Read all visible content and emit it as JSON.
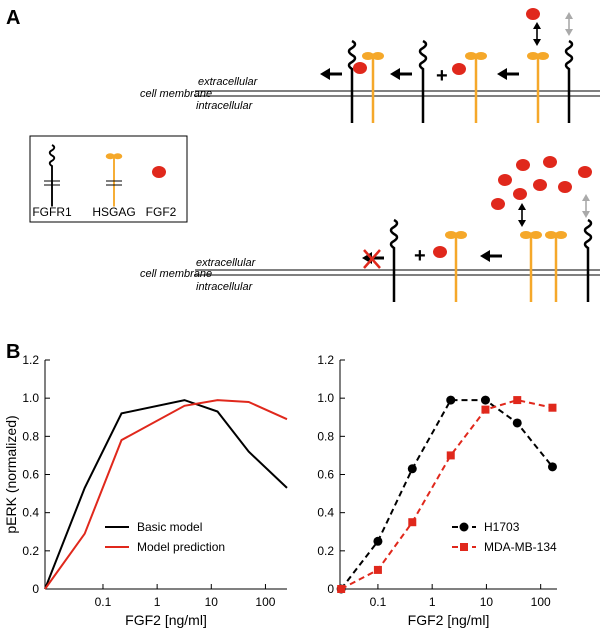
{
  "panel_a": {
    "label": "A",
    "top_row": {
      "extracellular": "extracellular",
      "cell_membrane": "cell membrane",
      "intracellular": "intracellular"
    },
    "bottom_row": {
      "extracellular": "extracellular",
      "cell_membrane": "cell membrane",
      "intracellular": "intracellular"
    },
    "legend": {
      "items": [
        "FGFR1",
        "HSGAG",
        "FGF2"
      ]
    }
  },
  "panel_b": {
    "label": "B"
  },
  "chart_data": [
    {
      "type": "line",
      "ylabel": "pERK (normalized)",
      "xlabel": "FGF2 [ng/ml]",
      "xscale": "log",
      "x": [
        0.0085,
        0.046,
        0.22,
        3.2,
        13,
        49,
        250
      ],
      "series": [
        {
          "name": "Basic model",
          "color": "#000000",
          "linestyle": "solid",
          "values": [
            0,
            0.53,
            0.92,
            0.99,
            0.93,
            0.72,
            0.53
          ]
        },
        {
          "name": "Model prediction",
          "color": "#e0281c",
          "linestyle": "solid",
          "values": [
            0,
            0.29,
            0.78,
            0.96,
            0.99,
            0.98,
            0.89
          ]
        }
      ],
      "xlim": [
        0.0085,
        250
      ],
      "ylim": [
        0,
        1.2
      ],
      "xticks": [
        0.1,
        1,
        10,
        100
      ],
      "yticks": [
        0,
        0.2,
        0.4,
        0.6,
        0.8,
        {
          "value": 1,
          "label": "1.0"
        },
        1.2
      ],
      "legend": "lower right"
    },
    {
      "type": "line",
      "xlabel": "FGF2 [ng/ml]",
      "xscale": "log",
      "x": [
        0.021,
        0.1,
        0.43,
        2.2,
        9.6,
        37,
        165
      ],
      "series": [
        {
          "name": "H1703",
          "color": "#000000",
          "linestyle": "dashed",
          "marker": "circle",
          "values": [
            0,
            0.25,
            0.63,
            0.99,
            0.99,
            0.87,
            0.64
          ]
        },
        {
          "name": "MDA-MB-134",
          "color": "#e0281c",
          "linestyle": "dashed",
          "marker": "square",
          "values": [
            0,
            0.1,
            0.35,
            0.7,
            0.94,
            0.99,
            0.95
          ]
        }
      ],
      "xlim": [
        0.02,
        200
      ],
      "ylim": [
        0,
        1.2
      ],
      "xticks": [
        0.1,
        1,
        10,
        100
      ],
      "yticks": [
        0,
        0.2,
        0.4,
        0.6,
        0.8,
        {
          "value": 1,
          "label": "1.0"
        },
        1.2
      ],
      "legend": "lower right"
    }
  ]
}
